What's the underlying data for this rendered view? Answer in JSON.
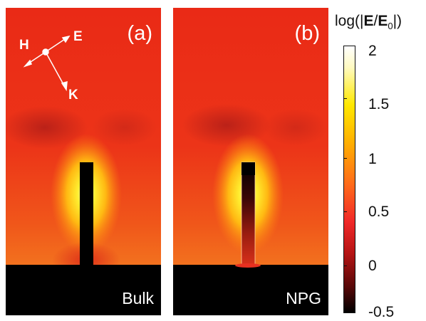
{
  "panels": [
    {
      "label": "(a)",
      "material": "Bulk"
    },
    {
      "label": "(b)",
      "material": "NPG"
    }
  ],
  "axes_legend": {
    "h": "H",
    "e": "E",
    "k": "K"
  },
  "colorbar": {
    "title_prefix": "log(|",
    "title_e": "E",
    "title_slash": "/",
    "title_e0": "E",
    "title_sub": "0",
    "title_suffix": "|)",
    "ticks": [
      "2",
      "1.5",
      "1",
      "0.5",
      "0",
      "-0.5"
    ],
    "range": [
      -0.5,
      2
    ],
    "colors": [
      "#000000",
      "#b41414",
      "#f02828",
      "#ff6a1a",
      "#ffb000",
      "#ffe800",
      "#ffffff"
    ]
  }
}
